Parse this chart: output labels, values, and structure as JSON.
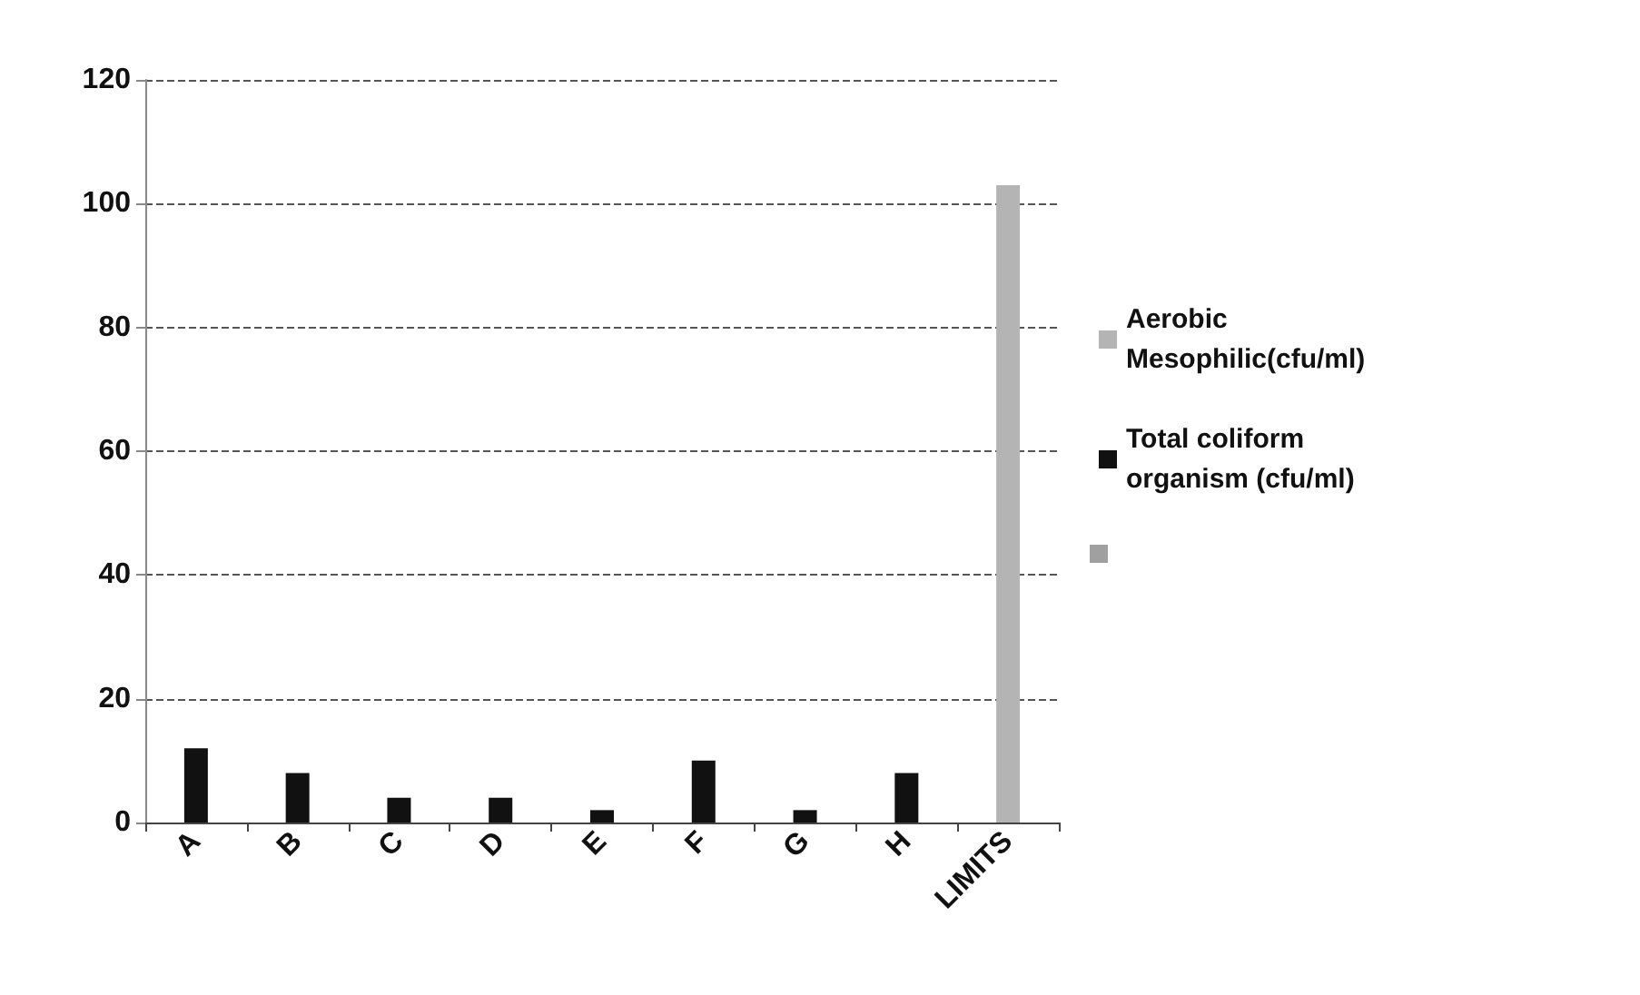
{
  "chart_data": {
    "type": "bar",
    "categories": [
      "A",
      "B",
      "C",
      "D",
      "E",
      "F",
      "G",
      "H",
      "LIMITS"
    ],
    "series": [
      {
        "name": "Aerobic Mesophilic(cfu/ml)",
        "color": "#b4b4b4",
        "values": [
          null,
          null,
          null,
          null,
          null,
          null,
          null,
          null,
          103
        ]
      },
      {
        "name": "Total coliform organism (cfu/ml)",
        "color": "#111111",
        "values": [
          12,
          8,
          4,
          4,
          2,
          10,
          2,
          8,
          null
        ]
      },
      {
        "color": "#a0a0a0",
        "values": [
          null,
          null,
          null,
          null,
          null,
          null,
          null,
          null,
          null
        ]
      }
    ],
    "ylim": [
      0,
      120
    ],
    "yticks": [
      0,
      20,
      40,
      60,
      80,
      100,
      120
    ],
    "grid": "y",
    "legend": "right"
  }
}
